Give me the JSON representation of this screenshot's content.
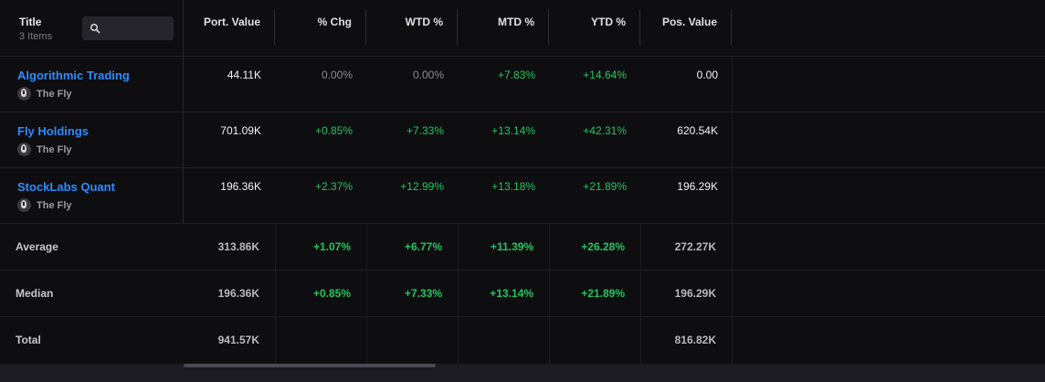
{
  "header": {
    "title": "Title",
    "count": "3 Items",
    "columns": [
      "Port. Value",
      "% Chg",
      "WTD %",
      "MTD %",
      "YTD %",
      "Pos. Value"
    ]
  },
  "rows": [
    {
      "title": "Algorithmic Trading",
      "source": "The Fly",
      "port_value": "44.11K",
      "chg": "0.00%",
      "wtd": "0.00%",
      "mtd": "+7.83%",
      "ytd": "+14.64%",
      "pos_value": "0.00"
    },
    {
      "title": "Fly Holdings",
      "source": "The Fly",
      "port_value": "701.09K",
      "chg": "+0.85%",
      "wtd": "+7.33%",
      "mtd": "+13.14%",
      "ytd": "+42.31%",
      "pos_value": "620.54K"
    },
    {
      "title": "StockLabs Quant",
      "source": "The Fly",
      "port_value": "196.36K",
      "chg": "+2.37%",
      "wtd": "+12.99%",
      "mtd": "+13.18%",
      "ytd": "+21.89%",
      "pos_value": "196.29K"
    }
  ],
  "summary": {
    "average": {
      "label": "Average",
      "port_value": "313.86K",
      "chg": "+1.07%",
      "wtd": "+6.77%",
      "mtd": "+11.39%",
      "ytd": "+26.28%",
      "pos_value": "272.27K"
    },
    "median": {
      "label": "Median",
      "port_value": "196.36K",
      "chg": "+0.85%",
      "wtd": "+7.33%",
      "mtd": "+13.14%",
      "ytd": "+21.89%",
      "pos_value": "196.29K"
    },
    "total": {
      "label": "Total",
      "port_value": "941.57K",
      "pos_value": "816.82K"
    }
  },
  "colors": {
    "link": "#2e8cff",
    "positive": "#22c55e",
    "neutral": "#8a8a92",
    "background": "#0e0e11"
  },
  "icons": [
    "search-icon",
    "the-fly-logo-icon"
  ]
}
